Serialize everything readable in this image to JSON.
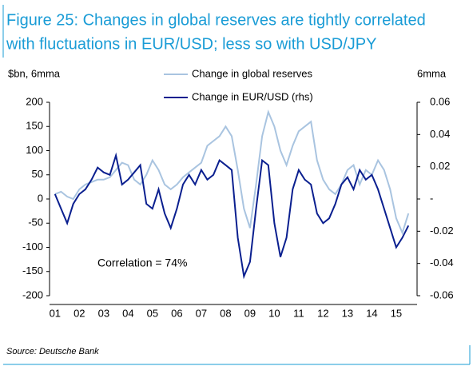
{
  "chart_data": {
    "type": "line",
    "title": [
      "Figure 25: Changes in global reserves are tightly correlated",
      "with fluctuations in EUR/USD; less so with USD/JPY"
    ],
    "y_label": "$bn, 6mma",
    "y2_label": "6mma",
    "annotation": "Correlation = 74%",
    "source": "Source: Deutsche Bank",
    "categories": [
      "01",
      null,
      null,
      null,
      "02",
      null,
      null,
      null,
      "03",
      null,
      null,
      null,
      "04",
      null,
      null,
      null,
      "05",
      null,
      null,
      null,
      "06",
      null,
      null,
      null,
      "07",
      null,
      null,
      null,
      "08",
      null,
      null,
      null,
      "09",
      null,
      null,
      null,
      "10",
      null,
      null,
      null,
      "11",
      null,
      null,
      null,
      "12",
      null,
      null,
      null,
      "13",
      null,
      null,
      null,
      "14",
      null,
      null,
      null,
      "15",
      null,
      null
    ],
    "series": [
      {
        "name": "Change in global reserves",
        "color": "#a9c4e0",
        "values": [
          10,
          15,
          5,
          0,
          20,
          30,
          35,
          40,
          40,
          45,
          60,
          75,
          70,
          40,
          30,
          50,
          80,
          60,
          30,
          20,
          30,
          45,
          55,
          65,
          75,
          110,
          120,
          130,
          150,
          130,
          60,
          -20,
          -60,
          30,
          130,
          180,
          150,
          100,
          70,
          110,
          140,
          150,
          160,
          80,
          40,
          20,
          10,
          30,
          60,
          70,
          30,
          60,
          50,
          80,
          60,
          20,
          -40,
          -70,
          -30
        ]
      },
      {
        "name": "Change in EUR/USD (rhs)",
        "color": "#0a1f8f",
        "axis": "y2",
        "values": [
          0.003,
          -0.006,
          -0.015,
          -0.003,
          0.003,
          0.006,
          0.012,
          0.0195,
          0.0165,
          0.015,
          0.027,
          0.009,
          0.012,
          0.0165,
          0.021,
          -0.003,
          -0.006,
          0.006,
          -0.009,
          -0.018,
          -0.006,
          0.009,
          0.015,
          0.009,
          0.018,
          0.012,
          0.015,
          0.024,
          0.021,
          0.018,
          -0.024,
          -0.048,
          -0.039,
          -0.006,
          0.024,
          0.021,
          -0.015,
          -0.036,
          -0.024,
          0.006,
          0.018,
          0.012,
          0.009,
          -0.009,
          -0.015,
          -0.012,
          -0.003,
          0.009,
          0.0135,
          0.006,
          0.018,
          0.012,
          0.015,
          0.006,
          -0.006,
          -0.018,
          -0.03,
          -0.024,
          -0.0165
        ]
      }
    ],
    "ylim": [
      -200,
      200
    ],
    "yticks": [
      -200,
      -150,
      -100,
      -50,
      0,
      50,
      100,
      150,
      200
    ],
    "y2lim": [
      -0.06,
      0.06
    ],
    "y2ticks": [
      -0.06,
      -0.04,
      -0.02,
      {
        "value": 0,
        "label": "-"
      },
      0.02,
      0.04,
      0.06
    ]
  }
}
